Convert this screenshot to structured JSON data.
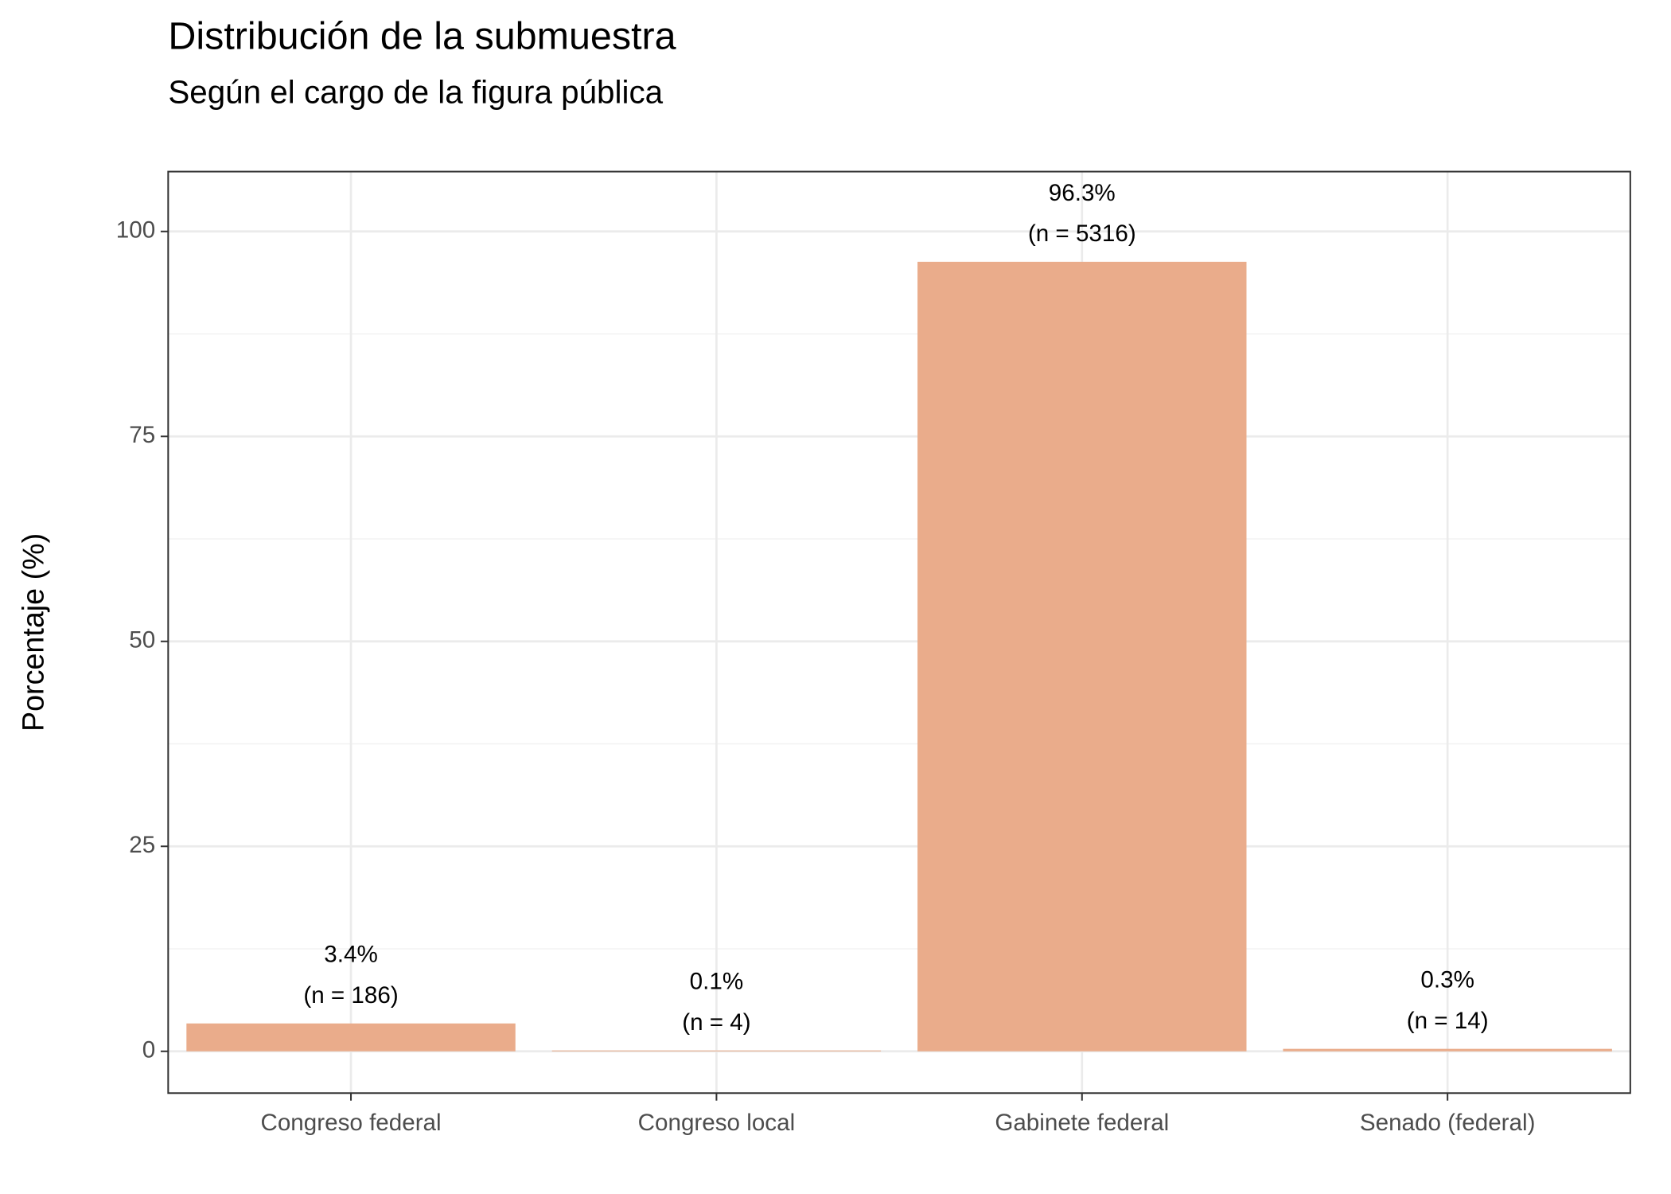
{
  "chart_data": {
    "type": "bar",
    "title": "Distribución de la submuestra",
    "subtitle": "Según el cargo de la figura pública",
    "y_label": "Porcentaje (%)",
    "categories": [
      "Congreso federal",
      "Congreso local",
      "Gabinete federal",
      "Senado (federal)"
    ],
    "values": [
      3.4,
      0.1,
      96.3,
      0.3
    ],
    "value_labels": [
      "3.4%",
      "0.1%",
      "96.3%",
      "0.3%"
    ],
    "count_labels": [
      "(n = 186)",
      "(n = 4)",
      "(n = 5316)",
      "(n = 14)"
    ],
    "color": "#eaac8b",
    "ylim": [
      -5.1,
      107.3
    ],
    "yticks": [
      0,
      25,
      50,
      75,
      100
    ],
    "grid": true
  }
}
